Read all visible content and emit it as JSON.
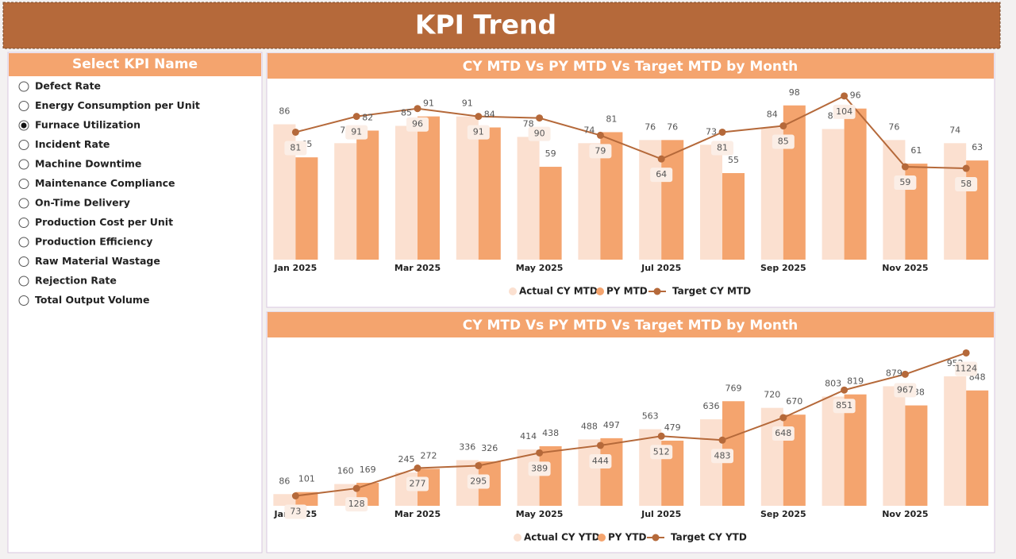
{
  "header": {
    "title": "KPI Trend"
  },
  "slicer": {
    "title": "Select KPI Name",
    "options": [
      "Defect Rate",
      "Energy Consumption per Unit",
      "Furnace Utilization",
      "Incident Rate",
      "Machine Downtime",
      "Maintenance Compliance",
      "On-Time Delivery",
      "Production Cost per Unit",
      "Production Efficiency",
      "Raw Material Wastage",
      "Rejection Rate",
      "Total Output Volume"
    ],
    "selected_index": 2
  },
  "chart_data": [
    {
      "type": "combo",
      "title": "CY MTD Vs PY MTD Vs Target MTD by Month",
      "categories": [
        "Jan 2025",
        null,
        "Mar 2025",
        null,
        "May 2025",
        null,
        "Jul 2025",
        null,
        "Sep 2025",
        null,
        "Nov 2025",
        null
      ],
      "series": [
        {
          "name": "Actual CY MTD",
          "color": "#fbe0d0",
          "type": "bar",
          "values": [
            86,
            74,
            85,
            91,
            78,
            74,
            76,
            73,
            84,
            83,
            76,
            74
          ]
        },
        {
          "name": "PY MTD",
          "color": "#f4a46e",
          "type": "bar",
          "values": [
            65,
            82,
            91,
            84,
            59,
            81,
            76,
            55,
            98,
            96,
            61,
            63
          ]
        },
        {
          "name": "Target CY MTD",
          "color": "#b5693a",
          "type": "line",
          "values": [
            81,
            91,
            96,
            91,
            90,
            79,
            64,
            81,
            85,
            104,
            59,
            58
          ]
        }
      ],
      "ylim": [
        0,
        112
      ]
    },
    {
      "type": "combo",
      "title": "CY MTD Vs PY MTD Vs Target MTD by Month",
      "categories": [
        "Jan 2025",
        null,
        "Mar 2025",
        null,
        "May 2025",
        null,
        "Jul 2025",
        null,
        "Sep 2025",
        null,
        "Nov 2025",
        null
      ],
      "series": [
        {
          "name": "Actual CY YTD",
          "color": "#fbe0d0",
          "type": "bar",
          "values": [
            86,
            160,
            245,
            336,
            414,
            488,
            563,
            636,
            720,
            803,
            879,
            952
          ]
        },
        {
          "name": "PY YTD",
          "color": "#f4a46e",
          "type": "bar",
          "values": [
            101,
            169,
            272,
            326,
            438,
            497,
            479,
            769,
            670,
            819,
            738,
            848
          ]
        },
        {
          "name": "Target CY YTD",
          "color": "#b5693a",
          "type": "line",
          "values": [
            73,
            128,
            277,
            295,
            389,
            444,
            512,
            483,
            648,
            851,
            967,
            1124
          ]
        }
      ],
      "ylim": [
        0,
        1150
      ]
    }
  ]
}
